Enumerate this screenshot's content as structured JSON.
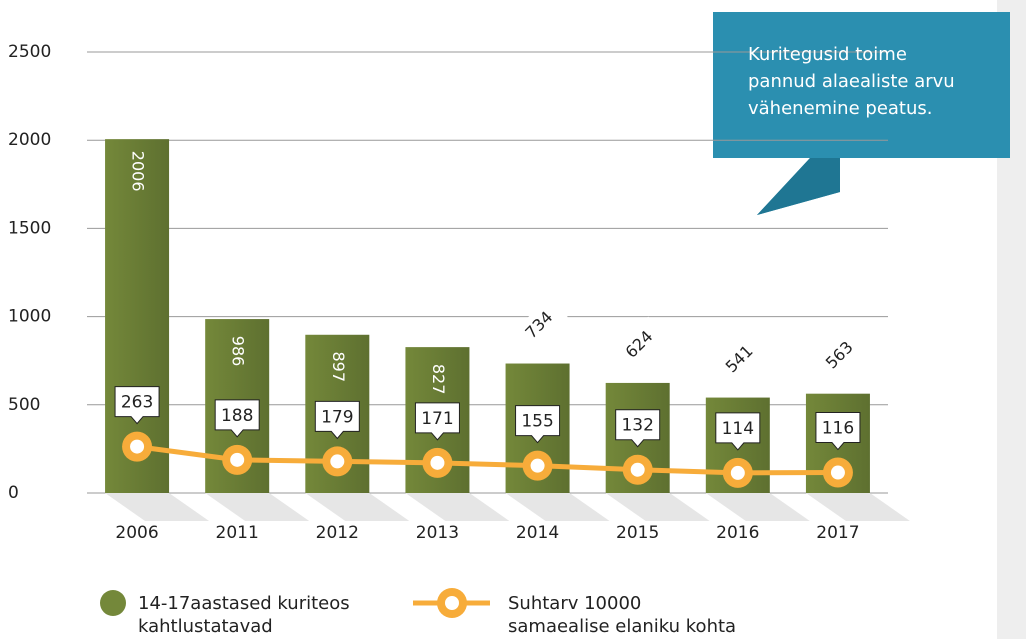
{
  "chart_data": {
    "type": "bar_line",
    "annotation": "Kuritegusid toime\npannud alaealiste arvu\nvähenemine peatus.",
    "categories": [
      "2006",
      "2011",
      "2012",
      "2013",
      "2014",
      "2015",
      "2016",
      "2017"
    ],
    "series": [
      {
        "name": "14-17aastased kuriteos\nkahtlustatavad",
        "type": "bar",
        "color": "#74883a",
        "values": [
          2006,
          986,
          897,
          827,
          734,
          624,
          541,
          563
        ]
      },
      {
        "name": "Suhtarv 10000\nsamaealise elaniku kohta",
        "type": "line",
        "color": "#f7ac3a",
        "values": [
          263,
          188,
          179,
          171,
          155,
          132,
          114,
          116
        ]
      }
    ],
    "ylim": [
      0,
      2500
    ],
    "yticks": [
      0,
      500,
      1000,
      1500,
      2000,
      2500
    ],
    "grid": true
  }
}
